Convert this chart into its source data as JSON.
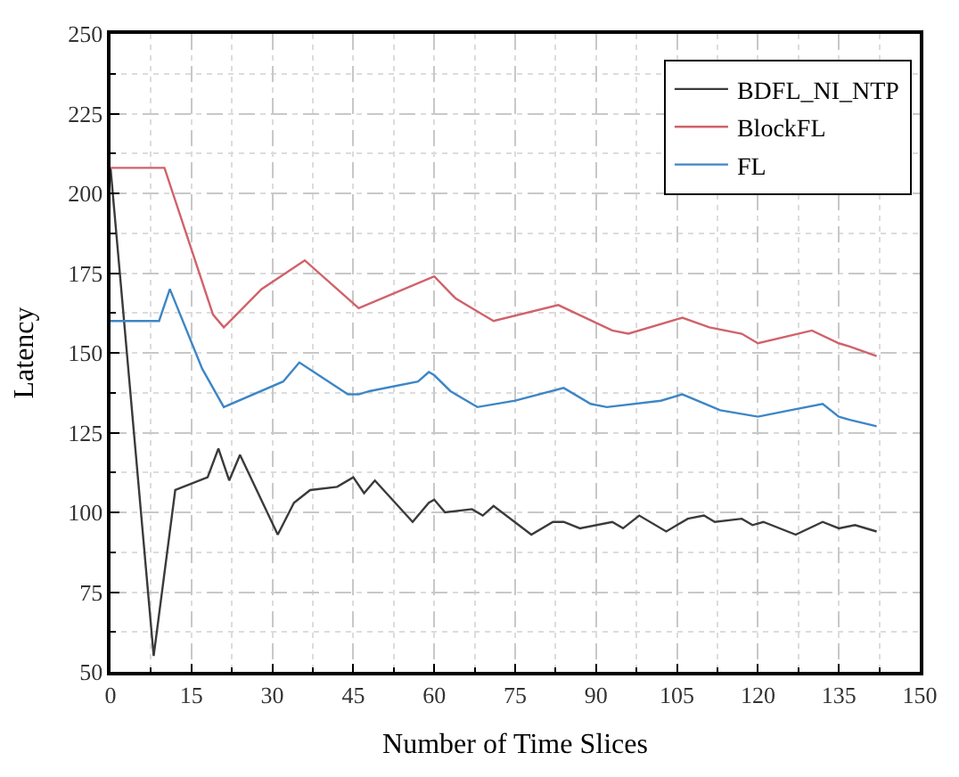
{
  "chart_data": {
    "type": "line",
    "xlabel": "Number of Time Slices",
    "ylabel": "Latency",
    "xlim": [
      0,
      150
    ],
    "ylim": [
      50,
      250
    ],
    "xticks": [
      0,
      15,
      30,
      45,
      60,
      75,
      90,
      105,
      120,
      135,
      150
    ],
    "yticks": [
      50,
      75,
      100,
      125,
      150,
      175,
      200,
      225,
      250
    ],
    "grid": true,
    "legend": "top right",
    "marker": "none",
    "line_style": "solid",
    "series": [
      {
        "name": "BDFL_NI_NTP",
        "color": "#3a3a3a",
        "x": [
          0,
          8,
          12,
          18,
          20,
          22,
          24,
          31,
          34,
          37,
          42,
          45,
          47,
          49,
          56,
          59,
          60,
          62,
          67,
          69,
          71,
          78,
          82,
          84,
          87,
          93,
          95,
          98,
          103,
          107,
          110,
          112,
          117,
          119,
          121,
          127,
          132,
          135,
          138,
          142
        ],
        "values": [
          208,
          55,
          107,
          111,
          120,
          110,
          118,
          93,
          103,
          107,
          108,
          111,
          106,
          110,
          97,
          103,
          104,
          100,
          101,
          99,
          102,
          93,
          97,
          97,
          95,
          97,
          95,
          99,
          94,
          98,
          99,
          97,
          98,
          96,
          97,
          93,
          97,
          95,
          96,
          94
        ]
      },
      {
        "name": "BlockFL",
        "color": "#d0626a",
        "x": [
          0,
          10,
          19,
          21,
          28,
          36,
          42,
          46,
          60,
          64,
          68,
          71,
          83,
          93,
          96,
          106,
          111,
          117,
          120,
          130,
          135,
          137,
          142
        ],
        "values": [
          208,
          208,
          162,
          158,
          170,
          179,
          170,
          164,
          174,
          167,
          163,
          160,
          165,
          157,
          156,
          161,
          158,
          156,
          153,
          157,
          153,
          152,
          149
        ]
      },
      {
        "name": "FL",
        "color": "#3d86c6",
        "x": [
          0,
          9,
          11,
          17,
          21,
          32,
          35,
          44,
          46,
          48,
          57,
          59,
          60,
          63,
          68,
          75,
          84,
          89,
          92,
          102,
          106,
          113,
          120,
          126,
          132,
          135,
          137,
          142
        ],
        "values": [
          160,
          160,
          170,
          145,
          133,
          141,
          147,
          137,
          137,
          138,
          141,
          144,
          143,
          138,
          133,
          135,
          139,
          134,
          133,
          135,
          137,
          132,
          130,
          132,
          134,
          130,
          129,
          127
        ]
      }
    ]
  }
}
